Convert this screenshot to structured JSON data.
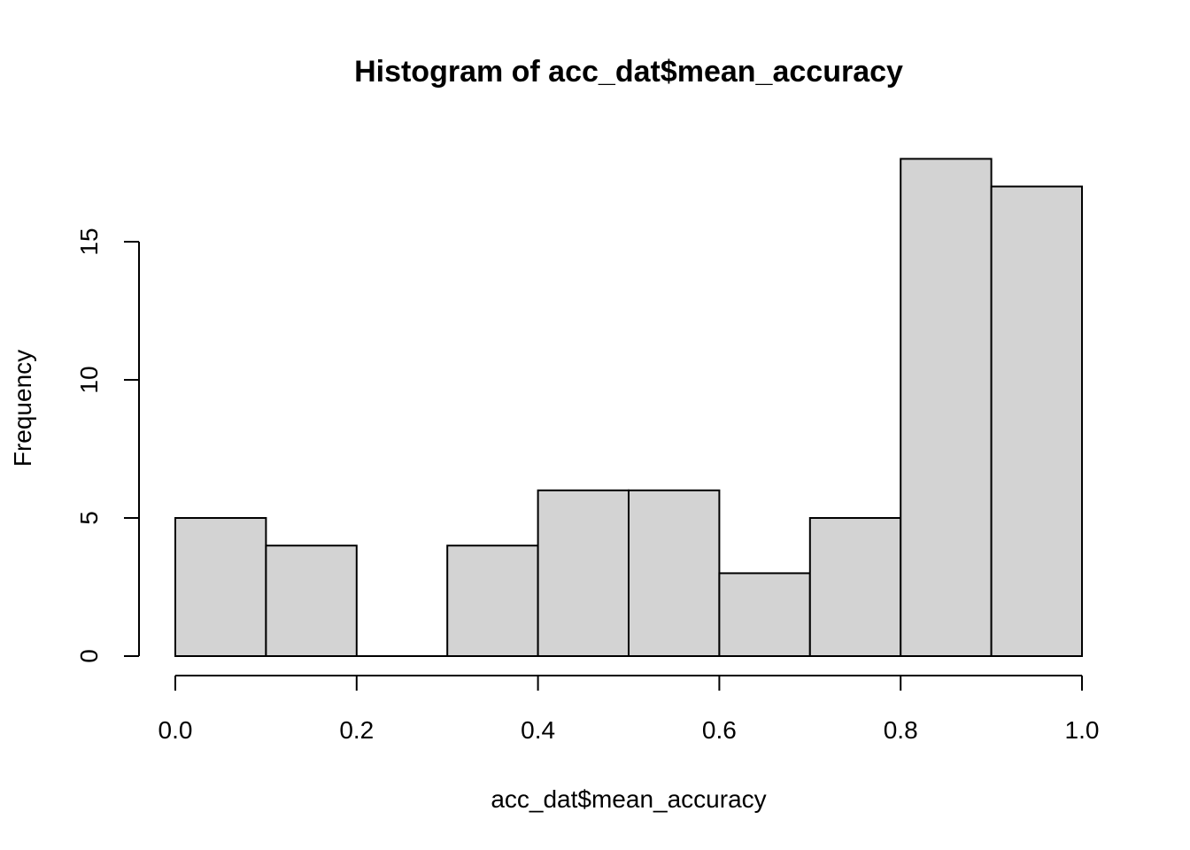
{
  "chart_data": {
    "type": "bar",
    "title": "Histogram of acc_dat$mean_accuracy",
    "xlabel": "acc_dat$mean_accuracy",
    "ylabel": "Frequency",
    "bins": [
      {
        "start": 0.0,
        "end": 0.1,
        "count": 5
      },
      {
        "start": 0.1,
        "end": 0.2,
        "count": 4
      },
      {
        "start": 0.2,
        "end": 0.3,
        "count": 0
      },
      {
        "start": 0.3,
        "end": 0.4,
        "count": 4
      },
      {
        "start": 0.4,
        "end": 0.5,
        "count": 6
      },
      {
        "start": 0.5,
        "end": 0.6,
        "count": 6
      },
      {
        "start": 0.6,
        "end": 0.7,
        "count": 3
      },
      {
        "start": 0.7,
        "end": 0.8,
        "count": 5
      },
      {
        "start": 0.8,
        "end": 0.9,
        "count": 18
      },
      {
        "start": 0.9,
        "end": 1.0,
        "count": 17
      }
    ],
    "xlim": [
      0.0,
      1.0
    ],
    "ylim": [
      0,
      18
    ],
    "x_ticks": [
      "0.0",
      "0.2",
      "0.4",
      "0.6",
      "0.8",
      "1.0"
    ],
    "y_ticks": [
      "0",
      "5",
      "10",
      "15"
    ],
    "grid": false,
    "bar_color": "#d3d3d3"
  }
}
